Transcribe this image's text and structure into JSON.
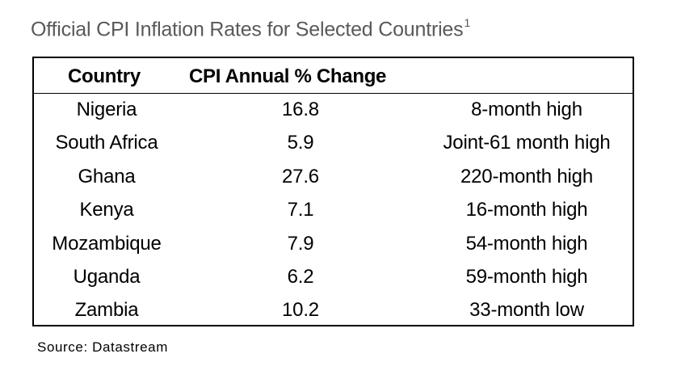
{
  "title": "Official CPI Inflation Rates for Selected Countries",
  "title_footnote": "1",
  "source": "Source: Datastream",
  "chart_data": {
    "type": "table",
    "title": "Official CPI Inflation Rates for Selected Countries",
    "columns": [
      "Country",
      "CPI Annual % Change",
      ""
    ],
    "rows": [
      {
        "country": "Nigeria",
        "value": "16.8",
        "note": "8-month high"
      },
      {
        "country": "South Africa",
        "value": "5.9",
        "note": "Joint-61 month high"
      },
      {
        "country": "Ghana",
        "value": "27.6",
        "note": "220-month high"
      },
      {
        "country": "Kenya",
        "value": "7.1",
        "note": "16-month high"
      },
      {
        "country": "Mozambique",
        "value": "7.9",
        "note": "54-month high"
      },
      {
        "country": "Uganda",
        "value": "6.2",
        "note": "59-month high"
      },
      {
        "country": "Zambia",
        "value": "10.2",
        "note": "33-month low"
      }
    ]
  }
}
